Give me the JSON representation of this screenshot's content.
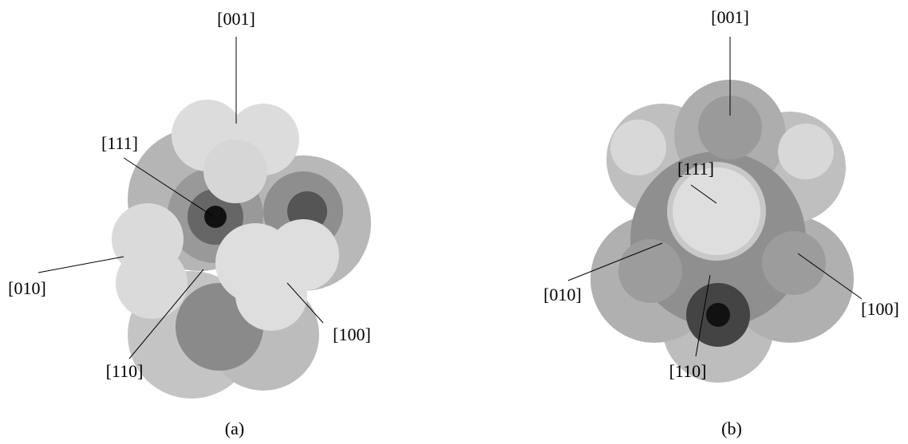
{
  "panels": [
    {
      "caption": "(a)",
      "labels": {
        "top": "[001]",
        "body_diagonal": "[111]",
        "left": "[010]",
        "bottom": "[110]",
        "right": "[100]"
      }
    },
    {
      "caption": "(b)",
      "labels": {
        "top": "[001]",
        "body_diagonal": "[111]",
        "left": "[010]",
        "bottom": "[110]",
        "right": "[100]"
      }
    }
  ]
}
